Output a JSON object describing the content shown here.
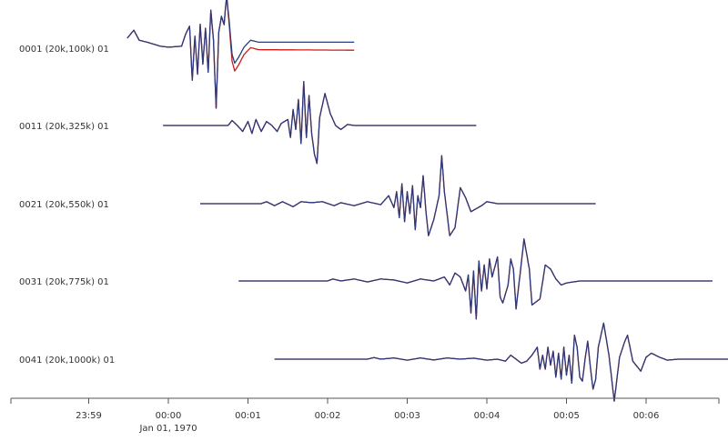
{
  "chart_data": {
    "type": "line",
    "title": "",
    "xlabel": "",
    "ylabel": "",
    "x_axis": {
      "unit": "seconds relative to 00:00",
      "range_seconds": [
        -83,
        377
      ],
      "ticks": [
        {
          "t": -60,
          "label": "23:59"
        },
        {
          "t": 0,
          "label": "00:00"
        },
        {
          "t": 60,
          "label": "00:01"
        },
        {
          "t": 120,
          "label": "00:02"
        },
        {
          "t": 180,
          "label": "00:03"
        },
        {
          "t": 240,
          "label": "00:04"
        },
        {
          "t": 300,
          "label": "00:05"
        },
        {
          "t": 360,
          "label": "00:06"
        }
      ],
      "date_label": "Jan 01, 1970"
    },
    "grid": false,
    "colors": {
      "series_blue": "#2a3a7a",
      "series_red": "#cc1a1a",
      "axis": "#555555",
      "text": "#333333"
    },
    "traces": [
      {
        "label": "0001 (20k,100k) 01",
        "start": -31,
        "end": 140,
        "offset": [
          [
            -31,
            0.5
          ],
          [
            -26,
            0.9
          ],
          [
            -22,
            0.4
          ],
          [
            -16,
            0.3
          ],
          [
            -6,
            0.1
          ],
          [
            0,
            0.05
          ],
          [
            10,
            0.1
          ],
          [
            13,
            0.7
          ],
          [
            16,
            1.1
          ],
          [
            18,
            -1.6
          ],
          [
            20,
            0.6
          ],
          [
            22,
            -1.3
          ],
          [
            24,
            1.2
          ],
          [
            26,
            -0.8
          ],
          [
            28,
            1.0
          ],
          [
            30,
            -1.2
          ],
          [
            32,
            1.9
          ],
          [
            34,
            0.4
          ],
          [
            36,
            -3.0
          ],
          [
            38,
            0.8
          ],
          [
            40,
            1.6
          ],
          [
            42,
            1.2
          ],
          [
            43,
            2.0
          ],
          [
            44,
            2.6
          ],
          [
            46,
            1.2
          ],
          [
            48,
            -0.4
          ],
          [
            50,
            -0.9
          ],
          [
            53,
            -0.6
          ],
          [
            57,
            -0.1
          ],
          [
            62,
            0.25
          ],
          [
            68,
            0.15
          ],
          [
            140,
            0.15
          ]
        ],
        "red_shift": [
          [
            -31,
            0
          ],
          [
            36,
            0
          ],
          [
            44,
            -0.05
          ],
          [
            48,
            -0.25
          ],
          [
            56,
            -0.22
          ],
          [
            140,
            -0.25
          ]
        ],
        "bias_blue": [
          [
            -31,
            0
          ],
          [
            44,
            0
          ],
          [
            50,
            0.15
          ],
          [
            140,
            0.15
          ]
        ]
      },
      {
        "label": "0011 (20k,325k) 01",
        "start": -4,
        "end": 232,
        "offset": [
          [
            -4,
            0
          ],
          [
            45,
            0
          ],
          [
            48,
            0.25
          ],
          [
            52,
            0.0
          ],
          [
            56,
            -0.3
          ],
          [
            60,
            0.2
          ],
          [
            63,
            -0.4
          ],
          [
            66,
            0.3
          ],
          [
            70,
            -0.3
          ],
          [
            74,
            0.2
          ],
          [
            78,
            0.0
          ],
          [
            82,
            -0.3
          ],
          [
            85,
            0.1
          ],
          [
            90,
            0.3
          ],
          [
            92,
            -0.6
          ],
          [
            94,
            0.8
          ],
          [
            96,
            -0.2
          ],
          [
            98,
            1.3
          ],
          [
            100,
            -0.9
          ],
          [
            102,
            2.2
          ],
          [
            104,
            -0.6
          ],
          [
            106,
            1.5
          ],
          [
            108,
            -0.4
          ],
          [
            110,
            -1.4
          ],
          [
            112,
            -1.9
          ],
          [
            114,
            0.4
          ],
          [
            118,
            1.6
          ],
          [
            122,
            0.6
          ],
          [
            126,
            0.0
          ],
          [
            130,
            -0.2
          ],
          [
            135,
            0.05
          ],
          [
            140,
            0
          ],
          [
            232,
            0
          ]
        ]
      },
      {
        "label": "0021 (20k,550k) 01",
        "start": 24,
        "end": 322,
        "offset": [
          [
            24,
            0
          ],
          [
            70,
            0
          ],
          [
            74,
            0.1
          ],
          [
            80,
            -0.1
          ],
          [
            86,
            0.1
          ],
          [
            94,
            -0.15
          ],
          [
            100,
            0.1
          ],
          [
            108,
            0.05
          ],
          [
            116,
            0.1
          ],
          [
            125,
            -0.1
          ],
          [
            130,
            0.05
          ],
          [
            140,
            -0.1
          ],
          [
            150,
            0.1
          ],
          [
            160,
            -0.05
          ],
          [
            166,
            0.4
          ],
          [
            170,
            -0.2
          ],
          [
            172,
            0.6
          ],
          [
            174,
            -0.7
          ],
          [
            176,
            1.0
          ],
          [
            178,
            -0.9
          ],
          [
            180,
            0.6
          ],
          [
            182,
            -0.5
          ],
          [
            184,
            0.9
          ],
          [
            186,
            -1.3
          ],
          [
            188,
            0.4
          ],
          [
            190,
            -0.2
          ],
          [
            192,
            1.4
          ],
          [
            194,
            -0.3
          ],
          [
            196,
            -1.6
          ],
          [
            200,
            -0.8
          ],
          [
            204,
            0.4
          ],
          [
            206,
            2.4
          ],
          [
            208,
            0.6
          ],
          [
            212,
            -1.6
          ],
          [
            216,
            -1.2
          ],
          [
            220,
            0.8
          ],
          [
            224,
            0.3
          ],
          [
            228,
            -0.4
          ],
          [
            236,
            -0.1
          ],
          [
            240,
            0.1
          ],
          [
            248,
            0
          ],
          [
            322,
            0
          ]
        ]
      },
      {
        "label": "0031 (20k,775k) 01",
        "start": 53,
        "end": 410,
        "offset": [
          [
            53,
            0
          ],
          [
            120,
            0
          ],
          [
            124,
            0.1
          ],
          [
            130,
            0.0
          ],
          [
            140,
            0.1
          ],
          [
            150,
            -0.05
          ],
          [
            160,
            0.1
          ],
          [
            170,
            0.05
          ],
          [
            180,
            -0.1
          ],
          [
            190,
            0.1
          ],
          [
            200,
            0.0
          ],
          [
            208,
            0.2
          ],
          [
            212,
            -0.2
          ],
          [
            216,
            0.4
          ],
          [
            220,
            0.2
          ],
          [
            224,
            -0.5
          ],
          [
            226,
            0.3
          ],
          [
            228,
            -1.6
          ],
          [
            230,
            0.5
          ],
          [
            232,
            -1.9
          ],
          [
            234,
            1.0
          ],
          [
            236,
            -0.5
          ],
          [
            238,
            0.8
          ],
          [
            240,
            -0.4
          ],
          [
            242,
            1.1
          ],
          [
            244,
            0.2
          ],
          [
            246,
            0.7
          ],
          [
            248,
            1.2
          ],
          [
            250,
            -0.8
          ],
          [
            252,
            -1.1
          ],
          [
            256,
            -0.2
          ],
          [
            258,
            1.1
          ],
          [
            260,
            0.6
          ],
          [
            262,
            -1.4
          ],
          [
            266,
            0.9
          ],
          [
            268,
            2.1
          ],
          [
            272,
            0.6
          ],
          [
            274,
            -1.2
          ],
          [
            280,
            -0.9
          ],
          [
            284,
            0.8
          ],
          [
            288,
            0.6
          ],
          [
            292,
            0.1
          ],
          [
            296,
            -0.2
          ],
          [
            300,
            -0.1
          ],
          [
            310,
            0
          ],
          [
            410,
            0
          ]
        ]
      },
      {
        "label": "0041 (20k,1000k) 01",
        "start": 80,
        "end": 440,
        "offset": [
          [
            80,
            0
          ],
          [
            150,
            0
          ],
          [
            155,
            0.08
          ],
          [
            160,
            0.0
          ],
          [
            170,
            0.06
          ],
          [
            180,
            -0.05
          ],
          [
            190,
            0.06
          ],
          [
            200,
            -0.04
          ],
          [
            210,
            0.06
          ],
          [
            220,
            0.0
          ],
          [
            230,
            0.05
          ],
          [
            240,
            -0.05
          ],
          [
            248,
            0.0
          ],
          [
            254,
            -0.1
          ],
          [
            258,
            0.2
          ],
          [
            262,
            0.0
          ],
          [
            266,
            -0.2
          ],
          [
            270,
            -0.1
          ],
          [
            274,
            0.2
          ],
          [
            278,
            0.6
          ],
          [
            280,
            -0.5
          ],
          [
            282,
            0.2
          ],
          [
            284,
            -0.5
          ],
          [
            286,
            0.6
          ],
          [
            288,
            -0.3
          ],
          [
            290,
            0.4
          ],
          [
            292,
            -0.9
          ],
          [
            294,
            0.3
          ],
          [
            296,
            -1.0
          ],
          [
            298,
            0.6
          ],
          [
            300,
            -0.8
          ],
          [
            302,
            0.2
          ],
          [
            304,
            -1.2
          ],
          [
            306,
            1.2
          ],
          [
            308,
            0.6
          ],
          [
            310,
            -0.9
          ],
          [
            312,
            -1.1
          ],
          [
            314,
            0.0
          ],
          [
            316,
            0.9
          ],
          [
            318,
            -0.4
          ],
          [
            320,
            -1.5
          ],
          [
            322,
            -1.0
          ],
          [
            324,
            0.6
          ],
          [
            328,
            1.8
          ],
          [
            332,
            0.2
          ],
          [
            336,
            -2.1
          ],
          [
            340,
            0.1
          ],
          [
            344,
            0.9
          ],
          [
            346,
            1.2
          ],
          [
            350,
            -0.1
          ],
          [
            356,
            -0.6
          ],
          [
            360,
            0.1
          ],
          [
            364,
            0.3
          ],
          [
            370,
            0.1
          ],
          [
            376,
            -0.05
          ],
          [
            384,
            0.0
          ],
          [
            440,
            0
          ]
        ]
      }
    ]
  }
}
